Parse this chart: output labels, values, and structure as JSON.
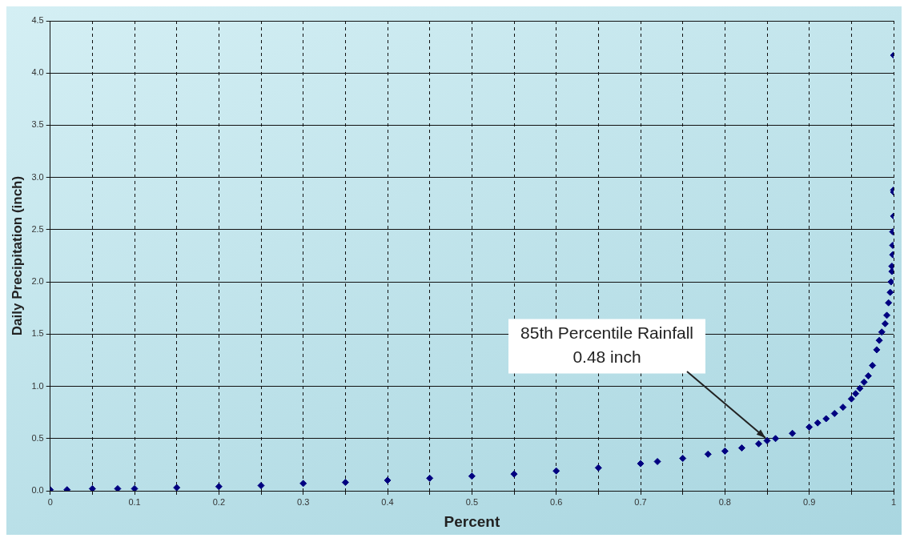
{
  "chart_data": {
    "type": "scatter",
    "xlabel": "Percent",
    "ylabel": "Daily Precipitation (inch)",
    "x": [
      0,
      0.02,
      0.05,
      0.08,
      0.1,
      0.15,
      0.2,
      0.25,
      0.3,
      0.35,
      0.4,
      0.45,
      0.5,
      0.55,
      0.6,
      0.65,
      0.7,
      0.72,
      0.75,
      0.78,
      0.8,
      0.82,
      0.84,
      0.85,
      0.86,
      0.88,
      0.9,
      0.91,
      0.92,
      0.93,
      0.94,
      0.95,
      0.955,
      0.96,
      0.965,
      0.97,
      0.975,
      0.98,
      0.983,
      0.986,
      0.99,
      0.992,
      0.994,
      0.996,
      0.997,
      0.998,
      0.998,
      0.999,
      0.999,
      0.999,
      1,
      1,
      1,
      1
    ],
    "series": [
      {
        "color": "#000080",
        "values": [
          0.01,
          0.01,
          0.02,
          0.02,
          0.02,
          0.03,
          0.04,
          0.05,
          0.07,
          0.08,
          0.1,
          0.12,
          0.14,
          0.16,
          0.19,
          0.22,
          0.26,
          0.28,
          0.31,
          0.35,
          0.38,
          0.41,
          0.45,
          0.48,
          0.5,
          0.55,
          0.61,
          0.65,
          0.69,
          0.74,
          0.8,
          0.88,
          0.93,
          0.98,
          1.04,
          1.1,
          1.2,
          1.35,
          1.44,
          1.52,
          1.6,
          1.68,
          1.8,
          1.9,
          2.0,
          2.1,
          2.15,
          2.26,
          2.35,
          2.48,
          2.63,
          2.86,
          2.88,
          4.17
        ]
      }
    ],
    "xlim": [
      0,
      1
    ],
    "xticks": [
      0,
      {
        "value": 0.05,
        "label": null
      },
      0.1,
      {
        "value": 0.15,
        "label": null
      },
      0.2,
      {
        "value": 0.25,
        "label": null
      },
      0.3,
      {
        "value": 0.35,
        "label": null
      },
      0.4,
      {
        "value": 0.45,
        "label": null
      },
      0.5,
      {
        "value": 0.55,
        "label": null
      },
      0.6,
      {
        "value": 0.65,
        "label": null
      },
      0.7,
      {
        "value": 0.75,
        "label": null
      },
      0.8,
      {
        "value": 0.85,
        "label": null
      },
      0.9,
      {
        "value": 0.95,
        "label": null
      },
      1
    ],
    "ylim": [
      0,
      4.5
    ],
    "yticks": [
      {
        "value": 0,
        "label": "0.0"
      },
      0.5,
      {
        "value": 1,
        "label": "1.0"
      },
      1.5,
      {
        "value": 2,
        "label": "2.0"
      },
      2.5,
      {
        "value": 3,
        "label": "3.0"
      },
      3.5,
      {
        "value": 4,
        "label": "4.0"
      },
      4.5
    ],
    "grid": true,
    "legend": false,
    "marker": "diamond",
    "annotations": [
      {
        "text": "85th Percentile Rainfall\n0.48 inch",
        "x": 0.85,
        "y": 0.48
      }
    ]
  }
}
